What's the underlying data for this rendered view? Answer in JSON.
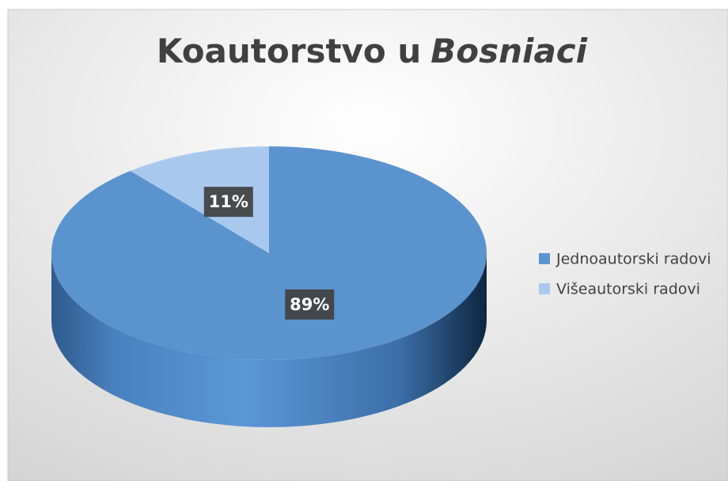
{
  "chart_data": {
    "type": "pie3d",
    "title": {
      "text": "Koautorstvo u",
      "emphasis": "Bosniaci"
    },
    "categories": [
      "Jednoautorski radovi",
      "Višeautorski radovi"
    ],
    "values": [
      89,
      11
    ],
    "value_labels": [
      "89%",
      "11%"
    ],
    "colors": [
      "#5b93cf",
      "#a9c8ee"
    ],
    "legend": "right"
  }
}
